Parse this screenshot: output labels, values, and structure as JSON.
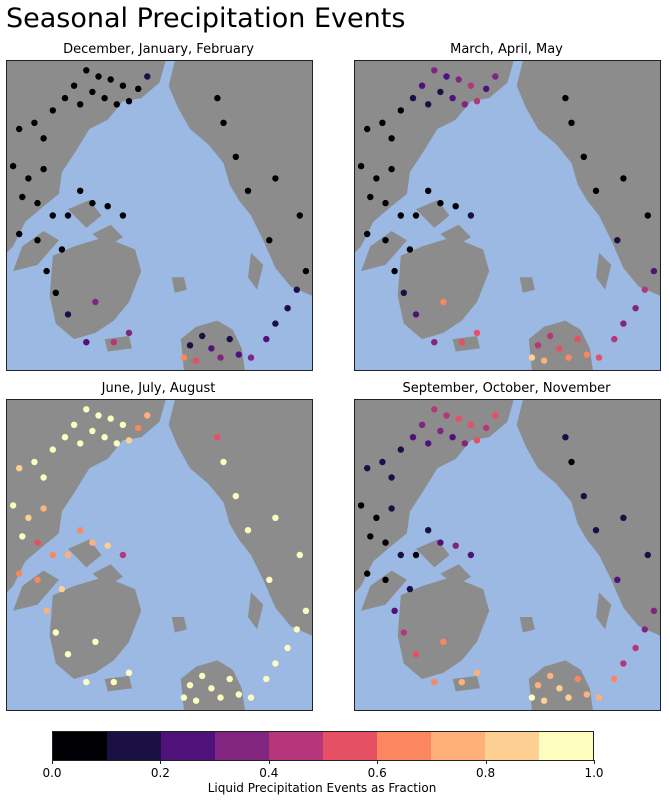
{
  "title": "Seasonal Precipitation Events",
  "chart_data": {
    "type": "scatter",
    "description_type": "map-scatter",
    "panels": [
      {
        "title": "December, January, February",
        "dominant_value_range": [
          0.0,
          0.3
        ]
      },
      {
        "title": "March, April, May",
        "dominant_value_range": [
          0.0,
          0.6
        ]
      },
      {
        "title": "June, July, August",
        "dominant_value_range": [
          0.6,
          1.0
        ]
      },
      {
        "title": "September, October, November",
        "dominant_value_range": [
          0.0,
          0.8
        ]
      }
    ],
    "colorbar": {
      "label": "Liquid Precipitation Events as Fraction",
      "range": [
        0.0,
        1.0
      ],
      "ticks": [
        "0.0",
        "0.2",
        "0.4",
        "0.6",
        "0.8",
        "1.0"
      ],
      "bins": 10,
      "colors": [
        "#000004",
        "#1b1044",
        "#4f127b",
        "#812581",
        "#b5367a",
        "#e55064",
        "#fb8761",
        "#feb078",
        "#fecf92",
        "#fcfdbf"
      ]
    },
    "map_colors": {
      "ocean": "#9bb9e3",
      "land": "#8c8c8c",
      "border": "#222222"
    }
  }
}
